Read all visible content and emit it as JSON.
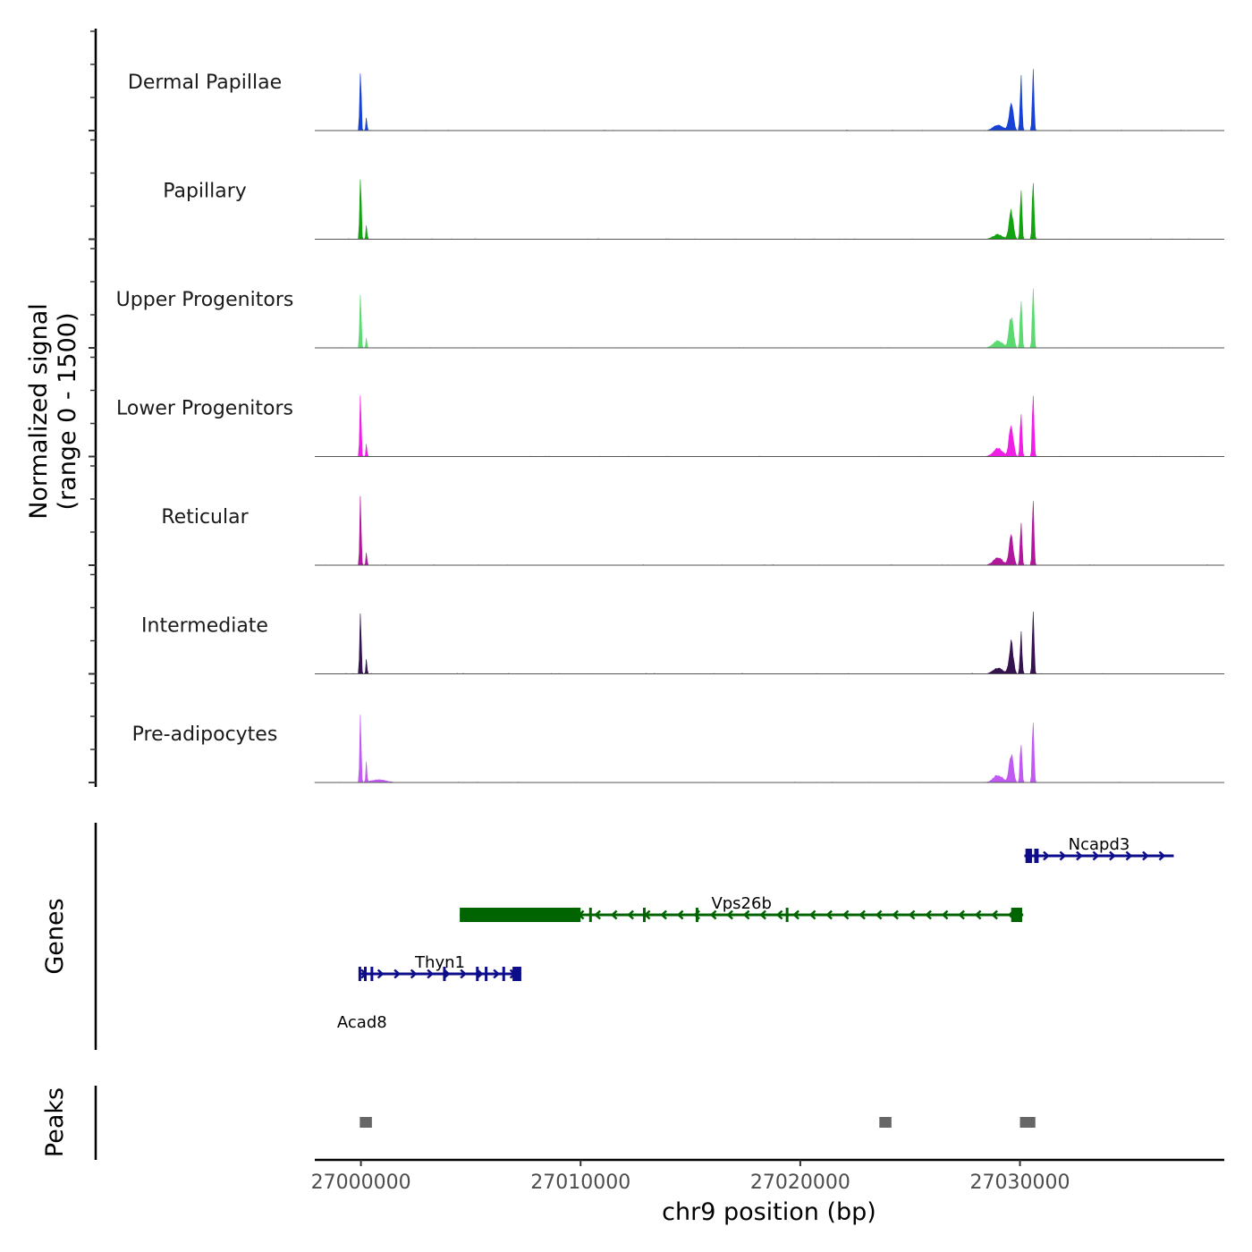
{
  "chart_data": {
    "type": "area",
    "title": "",
    "signal_axis_label_line1": "Normalized signal",
    "signal_axis_label_line2": "(range 0 - 1500)",
    "signal_range": [
      0,
      1500
    ],
    "genes_label": "Genes",
    "peaks_label": "Peaks",
    "xlabel": "chr9 position (bp)",
    "xlim": [
      26997900,
      27039300
    ],
    "x_ticks": [
      "27000000",
      "27010000",
      "27020000",
      "27030000"
    ],
    "x_tick_values": [
      27000000,
      27010000,
      27020000,
      27030000
    ],
    "tracks": [
      {
        "name": "Dermal Papillae",
        "color": "#1742d6",
        "peaks": [
          [
            26999980,
            1000,
            45
          ],
          [
            27000250,
            230,
            35
          ],
          [
            27029600,
            430,
            130
          ],
          [
            27030050,
            760,
            60
          ],
          [
            27030600,
            920,
            55
          ],
          [
            27029000,
            90,
            300
          ]
        ]
      },
      {
        "name": "Papillary",
        "color": "#14a310",
        "peaks": [
          [
            26999980,
            1000,
            45
          ],
          [
            27000250,
            250,
            35
          ],
          [
            27029600,
            420,
            130
          ],
          [
            27030050,
            680,
            60
          ],
          [
            27030600,
            980,
            55
          ],
          [
            27029000,
            70,
            300
          ]
        ]
      },
      {
        "name": "Upper Progenitors",
        "color": "#5cda72",
        "peaks": [
          [
            26999980,
            1000,
            45
          ],
          [
            27000250,
            150,
            35
          ],
          [
            27029600,
            490,
            130
          ],
          [
            27030050,
            810,
            60
          ],
          [
            27030600,
            1000,
            55
          ],
          [
            27029000,
            110,
            300
          ]
        ]
      },
      {
        "name": "Lower Progenitors",
        "color": "#f01fe5",
        "peaks": [
          [
            26999980,
            1000,
            45
          ],
          [
            27000250,
            170,
            35
          ],
          [
            27029600,
            520,
            130
          ],
          [
            27030050,
            660,
            60
          ],
          [
            27030600,
            1000,
            55
          ],
          [
            27029000,
            120,
            300
          ]
        ]
      },
      {
        "name": "Reticular",
        "color": "#b0179d",
        "peaks": [
          [
            26999980,
            1000,
            45
          ],
          [
            27000250,
            200,
            35
          ],
          [
            27029600,
            430,
            130
          ],
          [
            27030050,
            620,
            60
          ],
          [
            27030600,
            1000,
            55
          ],
          [
            27029000,
            110,
            300
          ]
        ]
      },
      {
        "name": "Intermediate",
        "color": "#35134e",
        "peaks": [
          [
            26999980,
            1000,
            45
          ],
          [
            27000250,
            240,
            35
          ],
          [
            27029600,
            470,
            130
          ],
          [
            27030050,
            620,
            60
          ],
          [
            27030600,
            950,
            55
          ],
          [
            27029000,
            90,
            300
          ]
        ]
      },
      {
        "name": "Pre-adipocytes",
        "color": "#c05af2",
        "peaks": [
          [
            26999980,
            1000,
            45
          ],
          [
            27000250,
            280,
            35
          ],
          [
            27029600,
            460,
            130
          ],
          [
            27030050,
            620,
            60
          ],
          [
            27030600,
            980,
            55
          ],
          [
            27029000,
            110,
            300
          ],
          [
            27000800,
            40,
            500
          ]
        ]
      }
    ],
    "genes": [
      {
        "name": "Ncapd3",
        "strand": "+",
        "start": 27030200,
        "end": 27037000,
        "color": "#0d0d8c",
        "exons": [
          [
            27030250,
            27030550
          ],
          [
            27030650,
            27030850
          ]
        ],
        "introns_with_exon_marks": []
      },
      {
        "name": "Vps26b",
        "strand": "-",
        "start": 27004500,
        "end": 27030150,
        "color": "#006400",
        "exons": [
          [
            27004500,
            27010000
          ],
          [
            27029600,
            27030100
          ]
        ],
        "introns_with_exon_marks": [
          27010450,
          27012900,
          27015300,
          27019400
        ]
      },
      {
        "name": "Thyn1",
        "strand": "+",
        "start": 26999900,
        "end": 27007300,
        "color": "#0d0d8c",
        "exons": [
          [
            27006900,
            27007300
          ]
        ],
        "introns_with_exon_marks": [
          26999950,
          27000200,
          27000500,
          27003800,
          27005300,
          27005700,
          27006500
        ]
      },
      {
        "name": "Acad8",
        "strand": "-",
        "start": 26999900,
        "end": 27000200,
        "color": "#006400",
        "exons": [],
        "introns_with_exon_marks": []
      }
    ],
    "peak_regions": [
      [
        26999950,
        27000500
      ],
      [
        27023600,
        27024150
      ],
      [
        27030000,
        27030700
      ]
    ],
    "peak_color": "#666666"
  }
}
